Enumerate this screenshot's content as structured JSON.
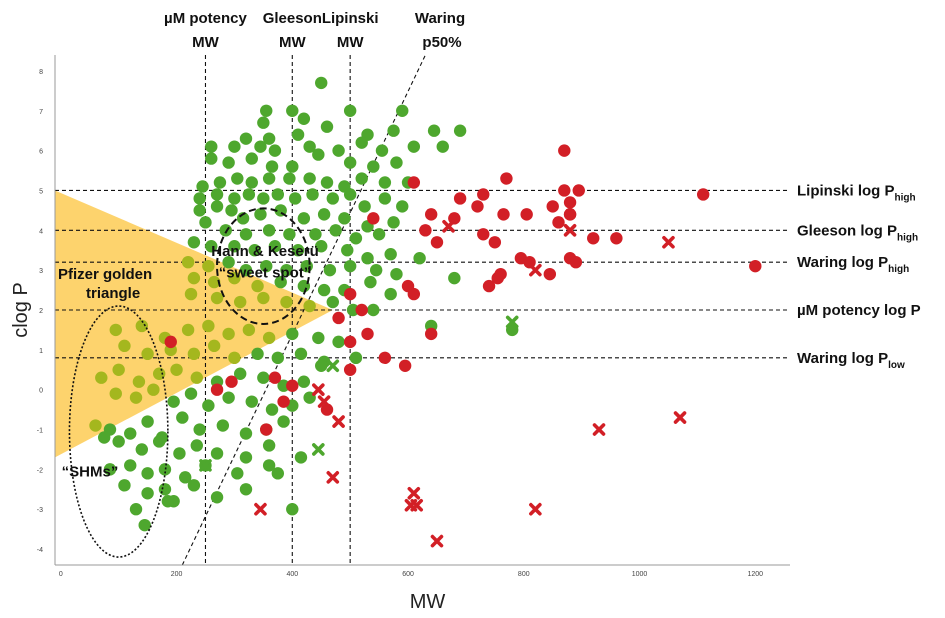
{
  "chart_data": {
    "type": "scatter",
    "xlabel": "MW",
    "ylabel": "clog P",
    "xlim": [
      -10,
      1260
    ],
    "ylim": [
      -4.4,
      8.4
    ],
    "x_ticks": [
      0,
      200,
      400,
      600,
      800,
      1000,
      1200
    ],
    "y_ticks": [
      -4,
      -3,
      -2,
      -1,
      0,
      1,
      2,
      3,
      4,
      5,
      6,
      7,
      8
    ],
    "colors": {
      "green": "#4ea72e",
      "red": "#d21f26",
      "yellow": "#fdc94d",
      "yellow_green": "#a4b71e"
    },
    "vertical_lines": [
      {
        "x": 250,
        "label": "µM potency MW"
      },
      {
        "x": 400,
        "label": "Gleeson MW"
      },
      {
        "x": 500,
        "label": "Lipinski MW"
      }
    ],
    "diagonal_line": {
      "label": "Waring p50%",
      "from": [
        210,
        -4.4
      ],
      "to": [
        630,
        8.4
      ]
    },
    "horizontal_lines": [
      {
        "y": 5.0,
        "name": "Lipinski log P",
        "sub": "high"
      },
      {
        "y": 4.0,
        "name": "Gleeson log P",
        "sub": "high"
      },
      {
        "y": 3.2,
        "name": "Waring log P",
        "sub": "high"
      },
      {
        "y": 2.0,
        "name": "µM potency log P",
        "sub": ""
      },
      {
        "y": 0.8,
        "name": "Waring log P",
        "sub": "low"
      }
    ],
    "triangle": {
      "label_line1": "Pfizer golden",
      "label_line2": "triangle",
      "vertices": [
        [
          -10,
          5.0
        ],
        [
          -10,
          -1.7
        ],
        [
          470,
          2.0
        ]
      ]
    },
    "regions": [
      {
        "label_line1": "Hann & Keserü",
        "label_line2": "“sweet spot”",
        "center": [
          350,
          3.1
        ],
        "radius_x": 80,
        "radius_y": 1.45
      },
      {
        "label_line1": "“SHMs”",
        "label_line2": "",
        "center": [
          100,
          -1.05
        ],
        "radius_x": 85,
        "radius_y": 3.15
      }
    ],
    "series": [
      {
        "name": "green compounds",
        "marker": "circle",
        "color": "#4ea72e",
        "points": [
          [
            450,
            7.7
          ],
          [
            355,
            7.0
          ],
          [
            400,
            7.0
          ],
          [
            500,
            7.0
          ],
          [
            590,
            7.0
          ],
          [
            420,
            6.8
          ],
          [
            350,
            6.7
          ],
          [
            460,
            6.6
          ],
          [
            575,
            6.5
          ],
          [
            645,
            6.5
          ],
          [
            690,
            6.5
          ],
          [
            320,
            6.3
          ],
          [
            360,
            6.3
          ],
          [
            410,
            6.4
          ],
          [
            530,
            6.4
          ],
          [
            260,
            6.1
          ],
          [
            300,
            6.1
          ],
          [
            345,
            6.1
          ],
          [
            370,
            6.0
          ],
          [
            430,
            6.1
          ],
          [
            480,
            6.0
          ],
          [
            520,
            6.2
          ],
          [
            555,
            6.0
          ],
          [
            610,
            6.1
          ],
          [
            660,
            6.1
          ],
          [
            260,
            5.8
          ],
          [
            290,
            5.7
          ],
          [
            330,
            5.8
          ],
          [
            365,
            5.6
          ],
          [
            400,
            5.6
          ],
          [
            445,
            5.9
          ],
          [
            500,
            5.7
          ],
          [
            540,
            5.6
          ],
          [
            580,
            5.7
          ],
          [
            245,
            5.1
          ],
          [
            275,
            5.2
          ],
          [
            305,
            5.3
          ],
          [
            330,
            5.2
          ],
          [
            360,
            5.3
          ],
          [
            395,
            5.3
          ],
          [
            430,
            5.3
          ],
          [
            460,
            5.2
          ],
          [
            490,
            5.1
          ],
          [
            520,
            5.3
          ],
          [
            560,
            5.2
          ],
          [
            600,
            5.2
          ],
          [
            240,
            4.8
          ],
          [
            270,
            4.9
          ],
          [
            300,
            4.8
          ],
          [
            325,
            4.9
          ],
          [
            350,
            4.8
          ],
          [
            375,
            4.9
          ],
          [
            405,
            4.8
          ],
          [
            435,
            4.9
          ],
          [
            470,
            4.8
          ],
          [
            500,
            4.9
          ],
          [
            525,
            4.6
          ],
          [
            560,
            4.8
          ],
          [
            590,
            4.6
          ],
          [
            240,
            4.5
          ],
          [
            270,
            4.6
          ],
          [
            295,
            4.5
          ],
          [
            315,
            4.3
          ],
          [
            345,
            4.4
          ],
          [
            380,
            4.5
          ],
          [
            420,
            4.3
          ],
          [
            455,
            4.4
          ],
          [
            490,
            4.3
          ],
          [
            530,
            4.1
          ],
          [
            575,
            4.2
          ],
          [
            250,
            4.2
          ],
          [
            285,
            4.0
          ],
          [
            320,
            3.9
          ],
          [
            360,
            4.0
          ],
          [
            395,
            3.9
          ],
          [
            440,
            3.9
          ],
          [
            475,
            4.0
          ],
          [
            510,
            3.8
          ],
          [
            550,
            3.9
          ],
          [
            230,
            3.7
          ],
          [
            260,
            3.6
          ],
          [
            300,
            3.6
          ],
          [
            335,
            3.5
          ],
          [
            370,
            3.6
          ],
          [
            410,
            3.5
          ],
          [
            450,
            3.6
          ],
          [
            495,
            3.5
          ],
          [
            530,
            3.3
          ],
          [
            570,
            3.4
          ],
          [
            620,
            3.3
          ],
          [
            220,
            3.2
          ],
          [
            255,
            3.1
          ],
          [
            290,
            3.2
          ],
          [
            320,
            3.0
          ],
          [
            355,
            3.1
          ],
          [
            390,
            3.0
          ],
          [
            425,
            3.1
          ],
          [
            465,
            3.0
          ],
          [
            500,
            3.1
          ],
          [
            545,
            3.0
          ],
          [
            580,
            2.9
          ],
          [
            230,
            2.8
          ],
          [
            265,
            2.7
          ],
          [
            300,
            2.8
          ],
          [
            340,
            2.6
          ],
          [
            380,
            2.7
          ],
          [
            420,
            2.6
          ],
          [
            455,
            2.5
          ],
          [
            490,
            2.5
          ],
          [
            535,
            2.7
          ],
          [
            570,
            2.4
          ],
          [
            680,
            2.8
          ],
          [
            225,
            2.4
          ],
          [
            270,
            2.3
          ],
          [
            310,
            2.2
          ],
          [
            350,
            2.3
          ],
          [
            390,
            2.2
          ],
          [
            430,
            2.1
          ],
          [
            470,
            2.2
          ],
          [
            505,
            2.0
          ],
          [
            540,
            2.0
          ],
          [
            95,
            1.5
          ],
          [
            140,
            1.6
          ],
          [
            180,
            1.3
          ],
          [
            220,
            1.5
          ],
          [
            255,
            1.6
          ],
          [
            290,
            1.4
          ],
          [
            325,
            1.5
          ],
          [
            360,
            1.3
          ],
          [
            400,
            1.4
          ],
          [
            445,
            1.3
          ],
          [
            480,
            1.2
          ],
          [
            640,
            1.6
          ],
          [
            780,
            1.5
          ],
          [
            110,
            1.1
          ],
          [
            150,
            0.9
          ],
          [
            190,
            1.0
          ],
          [
            230,
            0.9
          ],
          [
            265,
            1.1
          ],
          [
            300,
            0.8
          ],
          [
            340,
            0.9
          ],
          [
            375,
            0.8
          ],
          [
            415,
            0.9
          ],
          [
            455,
            0.7
          ],
          [
            510,
            0.8
          ],
          [
            70,
            0.3
          ],
          [
            100,
            0.5
          ],
          [
            135,
            0.2
          ],
          [
            170,
            0.4
          ],
          [
            200,
            0.5
          ],
          [
            235,
            0.3
          ],
          [
            270,
            0.2
          ],
          [
            310,
            0.4
          ],
          [
            350,
            0.3
          ],
          [
            385,
            0.1
          ],
          [
            420,
            0.2
          ],
          [
            450,
            0.6
          ],
          [
            95,
            -0.1
          ],
          [
            130,
            -0.2
          ],
          [
            160,
            0.0
          ],
          [
            195,
            -0.3
          ],
          [
            225,
            -0.1
          ],
          [
            255,
            -0.4
          ],
          [
            290,
            -0.2
          ],
          [
            330,
            -0.3
          ],
          [
            365,
            -0.5
          ],
          [
            400,
            -0.4
          ],
          [
            430,
            -0.2
          ],
          [
            60,
            -0.9
          ],
          [
            85,
            -1.0
          ],
          [
            120,
            -1.1
          ],
          [
            150,
            -0.8
          ],
          [
            175,
            -1.2
          ],
          [
            210,
            -0.7
          ],
          [
            240,
            -1.0
          ],
          [
            280,
            -0.9
          ],
          [
            320,
            -1.1
          ],
          [
            355,
            -1.0
          ],
          [
            385,
            -0.8
          ],
          [
            75,
            -1.2
          ],
          [
            100,
            -1.3
          ],
          [
            140,
            -1.5
          ],
          [
            170,
            -1.3
          ],
          [
            205,
            -1.6
          ],
          [
            235,
            -1.4
          ],
          [
            270,
            -1.6
          ],
          [
            320,
            -1.7
          ],
          [
            360,
            -1.4
          ],
          [
            415,
            -1.7
          ],
          [
            120,
            -1.9
          ],
          [
            150,
            -2.1
          ],
          [
            180,
            -2.0
          ],
          [
            215,
            -2.2
          ],
          [
            250,
            -1.9
          ],
          [
            305,
            -2.1
          ],
          [
            360,
            -1.9
          ],
          [
            375,
            -2.1
          ],
          [
            110,
            -2.4
          ],
          [
            150,
            -2.6
          ],
          [
            180,
            -2.5
          ],
          [
            195,
            -2.8
          ],
          [
            230,
            -2.4
          ],
          [
            270,
            -2.7
          ],
          [
            320,
            -2.5
          ],
          [
            130,
            -3.0
          ],
          [
            185,
            -2.8
          ],
          [
            400,
            -3.0
          ],
          [
            145,
            -3.4
          ],
          [
            85,
            -2.0
          ]
        ]
      },
      {
        "name": "red compounds",
        "marker": "circle",
        "color": "#d21f26",
        "points": [
          [
            870,
            6.0
          ],
          [
            610,
            5.2
          ],
          [
            770,
            5.3
          ],
          [
            690,
            4.8
          ],
          [
            730,
            4.9
          ],
          [
            870,
            5.0
          ],
          [
            880,
            4.7
          ],
          [
            895,
            5.0
          ],
          [
            880,
            4.4
          ],
          [
            1110,
            4.9
          ],
          [
            540,
            4.3
          ],
          [
            640,
            4.4
          ],
          [
            680,
            4.3
          ],
          [
            720,
            4.6
          ],
          [
            765,
            4.4
          ],
          [
            805,
            4.4
          ],
          [
            850,
            4.6
          ],
          [
            860,
            4.2
          ],
          [
            880,
            4.4
          ],
          [
            630,
            4.0
          ],
          [
            650,
            3.7
          ],
          [
            730,
            3.9
          ],
          [
            750,
            3.7
          ],
          [
            920,
            3.8
          ],
          [
            960,
            3.8
          ],
          [
            795,
            3.3
          ],
          [
            810,
            3.2
          ],
          [
            880,
            3.3
          ],
          [
            890,
            3.2
          ],
          [
            1200,
            3.1
          ],
          [
            600,
            2.6
          ],
          [
            755,
            2.8
          ],
          [
            760,
            2.9
          ],
          [
            740,
            2.6
          ],
          [
            845,
            2.9
          ],
          [
            610,
            2.4
          ],
          [
            500,
            2.4
          ],
          [
            520,
            2.0
          ],
          [
            480,
            1.8
          ],
          [
            640,
            1.4
          ],
          [
            500,
            1.2
          ],
          [
            530,
            1.4
          ],
          [
            560,
            0.8
          ],
          [
            595,
            0.6
          ],
          [
            500,
            0.5
          ],
          [
            295,
            0.2
          ],
          [
            370,
            0.3
          ],
          [
            400,
            0.1
          ],
          [
            385,
            -0.3
          ],
          [
            460,
            -0.5
          ],
          [
            270,
            0.0
          ],
          [
            355,
            -1.0
          ],
          [
            190,
            1.2
          ]
        ]
      },
      {
        "name": "green crossed compounds",
        "marker": "x",
        "color": "#4ea72e",
        "points": [
          [
            780,
            1.7
          ],
          [
            470,
            0.6
          ],
          [
            445,
            -1.5
          ],
          [
            250,
            -1.9
          ]
        ]
      },
      {
        "name": "red crossed compounds",
        "marker": "x",
        "color": "#d21f26",
        "points": [
          [
            670,
            4.1
          ],
          [
            880,
            4.0
          ],
          [
            1050,
            3.7
          ],
          [
            820,
            3.0
          ],
          [
            445,
            0.0
          ],
          [
            455,
            -0.3
          ],
          [
            480,
            -0.8
          ],
          [
            470,
            -2.2
          ],
          [
            1070,
            -0.7
          ],
          [
            930,
            -1.0
          ],
          [
            610,
            -2.6
          ],
          [
            605,
            -2.9
          ],
          [
            615,
            -2.9
          ],
          [
            345,
            -3.0
          ],
          [
            820,
            -3.0
          ],
          [
            650,
            -3.8
          ]
        ]
      }
    ]
  }
}
